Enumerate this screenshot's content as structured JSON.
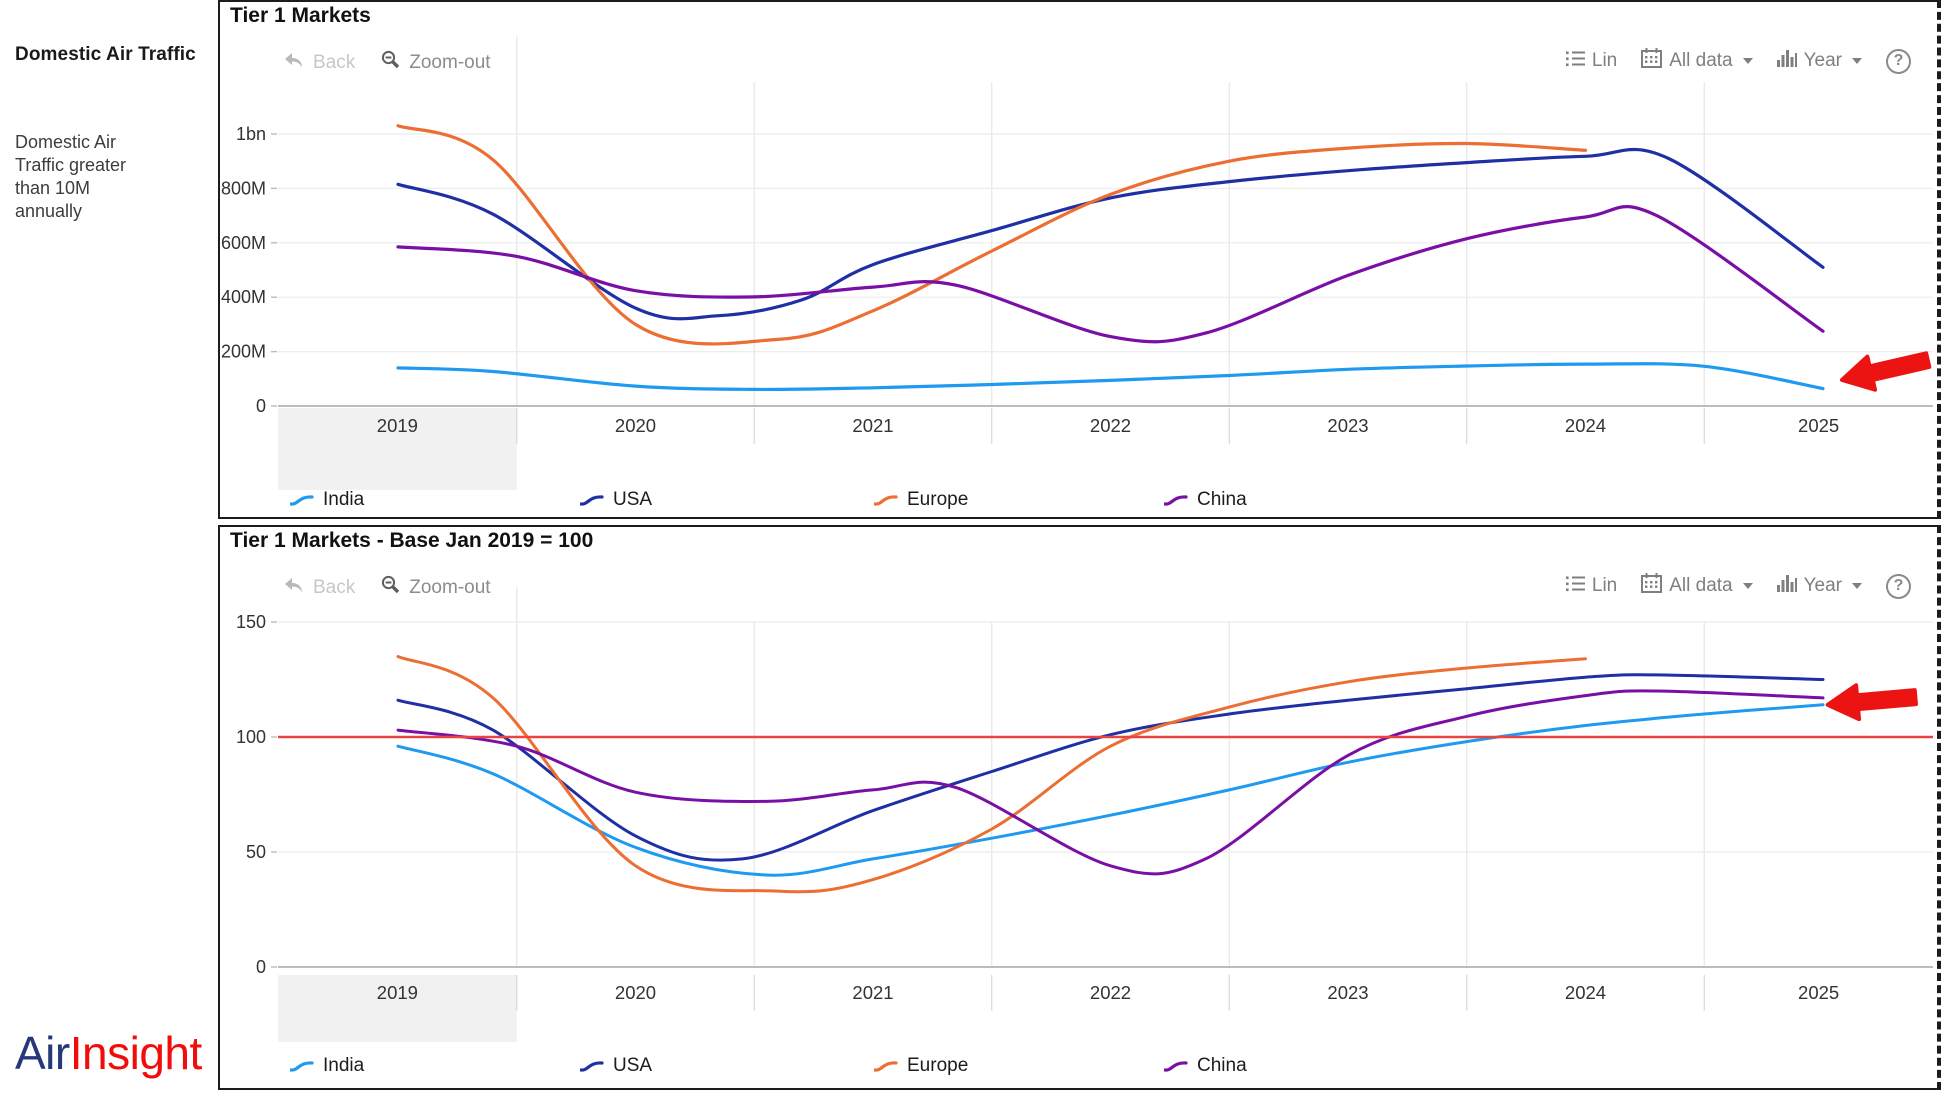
{
  "sidebar": {
    "heading": "Domestic Air Traffic",
    "description": "Domestic Air Traffic greater than 10M annually",
    "logo_air": "Air",
    "logo_insight": "Insight"
  },
  "toolbar": {
    "back": "Back",
    "zoom_out": "Zoom-out",
    "lin": "Lin",
    "all_data": "All data",
    "year": "Year",
    "help": "?"
  },
  "colors": {
    "india": "#1E9AF0",
    "usa": "#1F2FA4",
    "europe": "#EC6E33",
    "china": "#7A0FA5",
    "reference_line": "#E94442",
    "arrow": "#EC1313",
    "band_highlight": "#F1F1F1",
    "logo_air": "#263878",
    "logo_insight": "#F20D0D"
  },
  "chart_data": [
    {
      "type": "line",
      "title": "Tier 1 Markets",
      "x_ticks": [
        "2019",
        "2020",
        "2021",
        "2022",
        "2023",
        "2024",
        "2025"
      ],
      "highlighted_x_tick": "2019",
      "xlim": [
        2018.5,
        2025.5
      ],
      "ylim": [
        0,
        1210
      ],
      "grid": true,
      "legend_position": "bottom",
      "y_ticks": [
        {
          "label": "1bn",
          "value": 1000
        },
        {
          "label": "800M",
          "value": 800
        },
        {
          "label": "600M",
          "value": 600
        },
        {
          "label": "400M",
          "value": 400
        },
        {
          "label": "200M",
          "value": 200
        },
        {
          "label": "0",
          "value": 0
        }
      ],
      "y_unit": "annual passengers",
      "series": [
        {
          "name": "India",
          "color": "#1E9AF0",
          "points": [
            [
              2019,
              140
            ],
            [
              2019.4,
              127
            ],
            [
              2020,
              73
            ],
            [
              2020.5,
              61
            ],
            [
              2021,
              67
            ],
            [
              2021.5,
              79
            ],
            [
              2022,
              94
            ],
            [
              2022.5,
              112
            ],
            [
              2023,
              135
            ],
            [
              2023.5,
              147
            ],
            [
              2024,
              154
            ],
            [
              2024.5,
              146
            ],
            [
              2025,
              64
            ]
          ]
        },
        {
          "name": "USA",
          "color": "#1F2FA4",
          "points": [
            [
              2019,
              815
            ],
            [
              2019.4,
              705
            ],
            [
              2020,
              360
            ],
            [
              2020.35,
              332
            ],
            [
              2020.7,
              390
            ],
            [
              2021,
              520
            ],
            [
              2021.5,
              645
            ],
            [
              2022,
              765
            ],
            [
              2022.5,
              825
            ],
            [
              2023,
              865
            ],
            [
              2023.5,
              895
            ],
            [
              2024,
              918
            ],
            [
              2024.35,
              910
            ],
            [
              2025,
              510
            ]
          ]
        },
        {
          "name": "Europe",
          "color": "#EC6E33",
          "points": [
            [
              2019,
              1030
            ],
            [
              2019.4,
              905
            ],
            [
              2020,
              300
            ],
            [
              2020.6,
              245
            ],
            [
              2021,
              350
            ],
            [
              2021.5,
              570
            ],
            [
              2022,
              778
            ],
            [
              2022.5,
              900
            ],
            [
              2023,
              948
            ],
            [
              2023.5,
              965
            ],
            [
              2024,
              940
            ]
          ]
        },
        {
          "name": "China",
          "color": "#7A0FA5",
          "points": [
            [
              2019,
              585
            ],
            [
              2019.5,
              550
            ],
            [
              2020,
              424
            ],
            [
              2020.5,
              401
            ],
            [
              2021,
              437
            ],
            [
              2021.35,
              444
            ],
            [
              2022,
              255
            ],
            [
              2022.4,
              268
            ],
            [
              2023,
              480
            ],
            [
              2023.5,
              615
            ],
            [
              2024,
              695
            ],
            [
              2024.3,
              700
            ],
            [
              2025,
              275
            ]
          ]
        }
      ],
      "annotation": {
        "type": "arrow",
        "color": "#EC1313",
        "year": 2025.08,
        "value": 96,
        "angle": -13,
        "points_at": "India 2025 endpoint"
      }
    },
    {
      "type": "line",
      "title": "Tier 1 Markets - Base Jan 2019 = 100",
      "x_ticks": [
        "2019",
        "2020",
        "2021",
        "2022",
        "2023",
        "2024",
        "2025"
      ],
      "highlighted_x_tick": "2019",
      "xlim": [
        2018.5,
        2025.5
      ],
      "ylim": [
        0,
        155
      ],
      "grid": true,
      "legend_position": "bottom",
      "y_ticks": [
        {
          "label": "150",
          "value": 150
        },
        {
          "label": "100",
          "value": 100
        },
        {
          "label": "50",
          "value": 50
        },
        {
          "label": "0",
          "value": 0
        }
      ],
      "reference_line": {
        "value": 100,
        "color": "#E94442"
      },
      "y_unit": "index, base Jan 2019 = 100",
      "series": [
        {
          "name": "India",
          "color": "#1E9AF0",
          "points": [
            [
              2019,
              96
            ],
            [
              2019.4,
              84
            ],
            [
              2020,
              52
            ],
            [
              2020.55,
              40
            ],
            [
              2021,
              47
            ],
            [
              2021.5,
              56
            ],
            [
              2022,
              66
            ],
            [
              2022.5,
              77
            ],
            [
              2023,
              89
            ],
            [
              2023.5,
              98
            ],
            [
              2024,
              105
            ],
            [
              2024.5,
              110
            ],
            [
              2025,
              114
            ]
          ]
        },
        {
          "name": "USA",
          "color": "#1F2FA4",
          "points": [
            [
              2019,
              116
            ],
            [
              2019.4,
              103
            ],
            [
              2020,
              57
            ],
            [
              2020.45,
              47
            ],
            [
              2021,
              68
            ],
            [
              2021.5,
              85
            ],
            [
              2022,
              101
            ],
            [
              2022.5,
              110
            ],
            [
              2023,
              116
            ],
            [
              2023.5,
              121
            ],
            [
              2024,
              126
            ],
            [
              2024.3,
              127
            ],
            [
              2025,
              125
            ]
          ]
        },
        {
          "name": "Europe",
          "color": "#EC6E33",
          "points": [
            [
              2019,
              135
            ],
            [
              2019.4,
              117
            ],
            [
              2020,
              44
            ],
            [
              2020.6,
              33
            ],
            [
              2021,
              38
            ],
            [
              2021.5,
              60
            ],
            [
              2022,
              96
            ],
            [
              2022.5,
              113
            ],
            [
              2023,
              124
            ],
            [
              2023.5,
              130
            ],
            [
              2024,
              134
            ]
          ]
        },
        {
          "name": "China",
          "color": "#7A0FA5",
          "points": [
            [
              2019,
              103
            ],
            [
              2019.5,
              96
            ],
            [
              2020,
              76
            ],
            [
              2020.55,
              72
            ],
            [
              2021,
              77
            ],
            [
              2021.35,
              78
            ],
            [
              2022,
              44
            ],
            [
              2022.4,
              47
            ],
            [
              2023,
              92
            ],
            [
              2023.5,
              109
            ],
            [
              2024,
              118
            ],
            [
              2024.3,
              120
            ],
            [
              2025,
              117
            ]
          ]
        }
      ],
      "annotation": {
        "type": "arrow",
        "color": "#EC1313",
        "year": 2025.02,
        "value": 114,
        "angle": -5,
        "points_at": "India/China 2025 endpoints"
      }
    }
  ]
}
